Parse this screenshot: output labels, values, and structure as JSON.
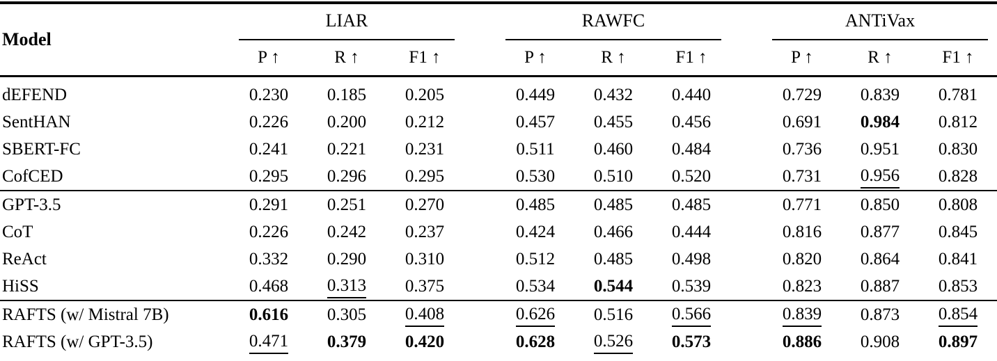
{
  "page": {
    "background_color": "#ffffff",
    "text_color": "#000000"
  },
  "table": {
    "model_header": "Model",
    "groups": [
      "LIAR",
      "RAWFC",
      "ANTiVax"
    ],
    "metrics": [
      "P ↑",
      "R ↑",
      "F1 ↑"
    ],
    "legend": {
      "bold_means": "best score",
      "underline_means": "second-best score"
    },
    "sections": [
      {
        "rows": [
          {
            "model": "dEFEND",
            "cells": [
              {
                "v": "0.230",
                "s": "p"
              },
              {
                "v": "0.185",
                "s": "p"
              },
              {
                "v": "0.205",
                "s": "p"
              },
              {
                "v": "0.449",
                "s": "p"
              },
              {
                "v": "0.432",
                "s": "p"
              },
              {
                "v": "0.440",
                "s": "p"
              },
              {
                "v": "0.729",
                "s": "p"
              },
              {
                "v": "0.839",
                "s": "p"
              },
              {
                "v": "0.781",
                "s": "p"
              }
            ]
          },
          {
            "model": "SentHAN",
            "cells": [
              {
                "v": "0.226",
                "s": "p"
              },
              {
                "v": "0.200",
                "s": "p"
              },
              {
                "v": "0.212",
                "s": "p"
              },
              {
                "v": "0.457",
                "s": "p"
              },
              {
                "v": "0.455",
                "s": "p"
              },
              {
                "v": "0.456",
                "s": "p"
              },
              {
                "v": "0.691",
                "s": "p"
              },
              {
                "v": "0.984",
                "s": "b"
              },
              {
                "v": "0.812",
                "s": "p"
              }
            ]
          },
          {
            "model": "SBERT-FC",
            "cells": [
              {
                "v": "0.241",
                "s": "p"
              },
              {
                "v": "0.221",
                "s": "p"
              },
              {
                "v": "0.231",
                "s": "p"
              },
              {
                "v": "0.511",
                "s": "p"
              },
              {
                "v": "0.460",
                "s": "p"
              },
              {
                "v": "0.484",
                "s": "p"
              },
              {
                "v": "0.736",
                "s": "p"
              },
              {
                "v": "0.951",
                "s": "p"
              },
              {
                "v": "0.830",
                "s": "p"
              }
            ]
          },
          {
            "model": "CofCED",
            "cells": [
              {
                "v": "0.295",
                "s": "p"
              },
              {
                "v": "0.296",
                "s": "p"
              },
              {
                "v": "0.295",
                "s": "p"
              },
              {
                "v": "0.530",
                "s": "p"
              },
              {
                "v": "0.510",
                "s": "p"
              },
              {
                "v": "0.520",
                "s": "p"
              },
              {
                "v": "0.731",
                "s": "p"
              },
              {
                "v": "0.956",
                "s": "u"
              },
              {
                "v": "0.828",
                "s": "p"
              }
            ]
          }
        ]
      },
      {
        "rows": [
          {
            "model": "GPT-3.5",
            "cells": [
              {
                "v": "0.291",
                "s": "p"
              },
              {
                "v": "0.251",
                "s": "p"
              },
              {
                "v": "0.270",
                "s": "p"
              },
              {
                "v": "0.485",
                "s": "p"
              },
              {
                "v": "0.485",
                "s": "p"
              },
              {
                "v": "0.485",
                "s": "p"
              },
              {
                "v": "0.771",
                "s": "p"
              },
              {
                "v": "0.850",
                "s": "p"
              },
              {
                "v": "0.808",
                "s": "p"
              }
            ]
          },
          {
            "model": "CoT",
            "cells": [
              {
                "v": "0.226",
                "s": "p"
              },
              {
                "v": "0.242",
                "s": "p"
              },
              {
                "v": "0.237",
                "s": "p"
              },
              {
                "v": "0.424",
                "s": "p"
              },
              {
                "v": "0.466",
                "s": "p"
              },
              {
                "v": "0.444",
                "s": "p"
              },
              {
                "v": "0.816",
                "s": "p"
              },
              {
                "v": "0.877",
                "s": "p"
              },
              {
                "v": "0.845",
                "s": "p"
              }
            ]
          },
          {
            "model": "ReAct",
            "cells": [
              {
                "v": "0.332",
                "s": "p"
              },
              {
                "v": "0.290",
                "s": "p"
              },
              {
                "v": "0.310",
                "s": "p"
              },
              {
                "v": "0.512",
                "s": "p"
              },
              {
                "v": "0.485",
                "s": "p"
              },
              {
                "v": "0.498",
                "s": "p"
              },
              {
                "v": "0.820",
                "s": "p"
              },
              {
                "v": "0.864",
                "s": "p"
              },
              {
                "v": "0.841",
                "s": "p"
              }
            ]
          },
          {
            "model": "HiSS",
            "cells": [
              {
                "v": "0.468",
                "s": "p"
              },
              {
                "v": "0.313",
                "s": "u"
              },
              {
                "v": "0.375",
                "s": "p"
              },
              {
                "v": "0.534",
                "s": "p"
              },
              {
                "v": "0.544",
                "s": "b"
              },
              {
                "v": "0.539",
                "s": "p"
              },
              {
                "v": "0.823",
                "s": "p"
              },
              {
                "v": "0.887",
                "s": "p"
              },
              {
                "v": "0.853",
                "s": "p"
              }
            ]
          }
        ]
      },
      {
        "rows": [
          {
            "model": "RAFTS (w/ Mistral 7B)",
            "cells": [
              {
                "v": "0.616",
                "s": "b"
              },
              {
                "v": "0.305",
                "s": "p"
              },
              {
                "v": "0.408",
                "s": "u"
              },
              {
                "v": "0.626",
                "s": "u"
              },
              {
                "v": "0.516",
                "s": "p"
              },
              {
                "v": "0.566",
                "s": "u"
              },
              {
                "v": "0.839",
                "s": "u"
              },
              {
                "v": "0.873",
                "s": "p"
              },
              {
                "v": "0.854",
                "s": "u"
              }
            ]
          },
          {
            "model": "RAFTS (w/ GPT-3.5)",
            "cells": [
              {
                "v": "0.471",
                "s": "u"
              },
              {
                "v": "0.379",
                "s": "b"
              },
              {
                "v": "0.420",
                "s": "b"
              },
              {
                "v": "0.628",
                "s": "b"
              },
              {
                "v": "0.526",
                "s": "u"
              },
              {
                "v": "0.573",
                "s": "b"
              },
              {
                "v": "0.886",
                "s": "b"
              },
              {
                "v": "0.908",
                "s": "p"
              },
              {
                "v": "0.897",
                "s": "b"
              }
            ]
          }
        ]
      }
    ]
  }
}
